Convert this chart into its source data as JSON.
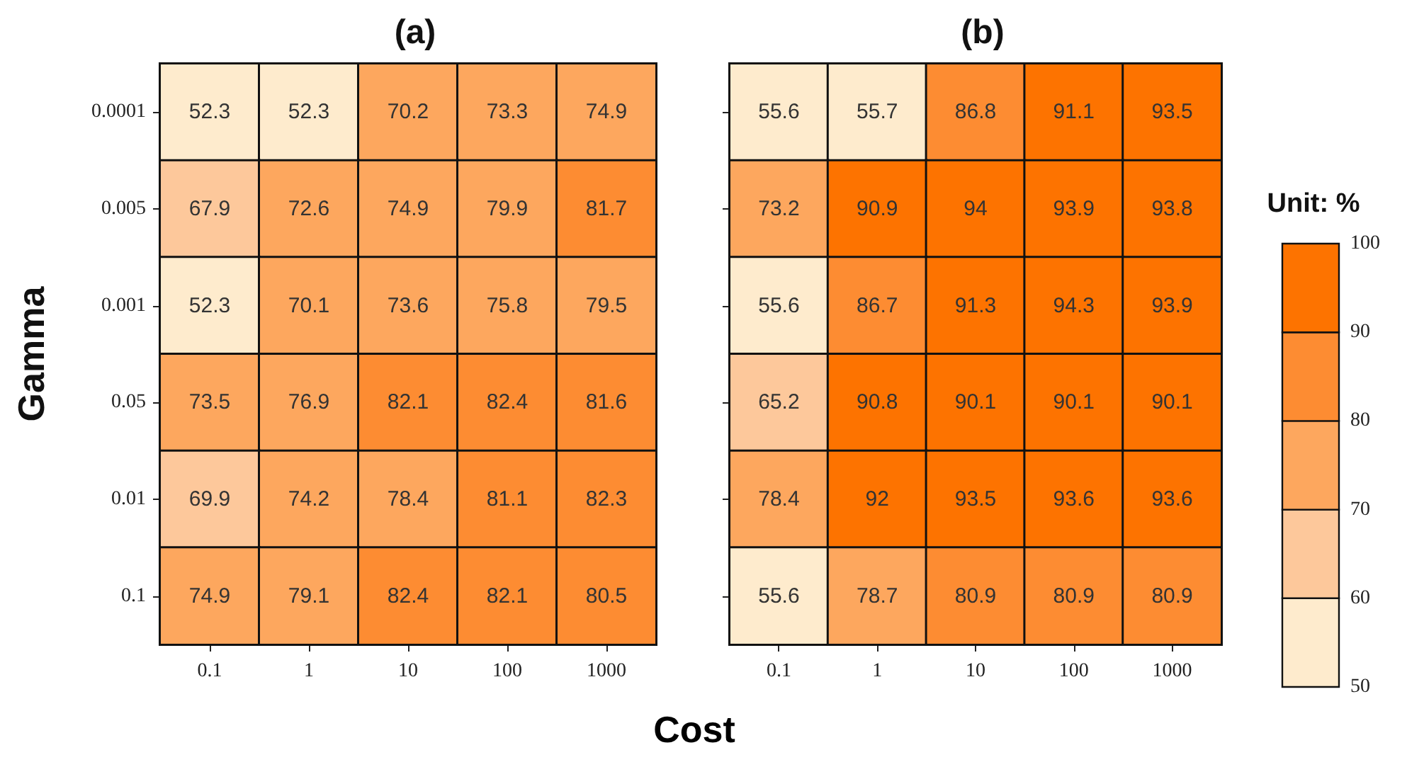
{
  "chart_data": [
    {
      "type": "heatmap",
      "title": "(a)",
      "xlabel": "Cost",
      "ylabel": "Gamma",
      "categories": [
        "0.1",
        "1",
        "10",
        "100",
        "1000"
      ],
      "y_categories": [
        "0.0001",
        "0.005",
        "0.001",
        "0.05",
        "0.01",
        "0.1"
      ],
      "cells": [
        [
          52.3,
          52.3,
          70.2,
          73.3,
          74.9
        ],
        [
          67.9,
          72.6,
          74.9,
          79.9,
          81.7
        ],
        [
          52.3,
          70.1,
          73.6,
          75.8,
          79.5
        ],
        [
          73.5,
          76.9,
          82.1,
          82.4,
          81.6
        ],
        [
          69.9,
          74.2,
          78.4,
          81.1,
          82.3
        ],
        [
          74.9,
          79.1,
          82.4,
          82.1,
          80.5
        ]
      ],
      "colors": [
        "#feebcd",
        "#fdc89b",
        "#fda75e",
        "#fd8c32",
        "#fd7300"
      ],
      "data_labels": true
    },
    {
      "type": "heatmap",
      "title": "(b)",
      "categories": [
        "0.1",
        "1",
        "10",
        "100",
        "1000"
      ],
      "y_categories": [
        "0.0001",
        "0.005",
        "0.001",
        "0.05",
        "0.01",
        "0.1"
      ],
      "cells": [
        [
          55.6,
          55.7,
          86.8,
          91.1,
          93.5
        ],
        [
          73.2,
          90.9,
          94,
          93.9,
          93.8
        ],
        [
          55.6,
          86.7,
          91.3,
          94.3,
          93.9
        ],
        [
          65.2,
          90.8,
          90.1,
          90.1,
          90.1
        ],
        [
          78.4,
          92,
          93.5,
          93.6,
          93.6
        ],
        [
          55.6,
          78.7,
          80.9,
          80.9,
          80.9
        ]
      ],
      "clabel": "Unit: %",
      "clim": [
        50,
        100
      ],
      "cticks": [
        50,
        60,
        70,
        80,
        90,
        100
      ],
      "colors": [
        "#feebcd",
        "#fdc89b",
        "#fda75e",
        "#fd8c32",
        "#fd7300"
      ],
      "data_labels": true,
      "tick_labels": "x"
    }
  ]
}
